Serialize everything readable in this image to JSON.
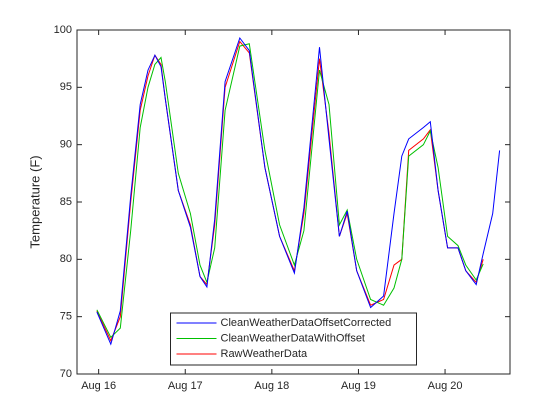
{
  "chart_data": {
    "type": "line",
    "ylabel": "Temperature (F)",
    "x": [
      15.98,
      16.14,
      16.25,
      16.37,
      16.48,
      16.57,
      16.65,
      16.72,
      16.77,
      16.92,
      17.06,
      17.17,
      17.25,
      17.34,
      17.46,
      17.63,
      17.74,
      17.92,
      18.09,
      18.26,
      18.37,
      18.55,
      18.66,
      18.78,
      18.87,
      18.98,
      19.14,
      19.29,
      19.41,
      19.5,
      19.58,
      19.75,
      19.83,
      19.92,
      20.03,
      20.15,
      20.24,
      20.36,
      20.44,
      20.55,
      20.63
    ],
    "series": [
      {
        "name": "CleanWeatherDataOffsetCorrected",
        "color": "#0000ff",
        "values": [
          75.4,
          72.6,
          75.5,
          85.5,
          93.5,
          96.5,
          97.8,
          96.8,
          94,
          86,
          82.8,
          78.5,
          77.6,
          83.5,
          95.5,
          99.3,
          98.2,
          88,
          82,
          78.8,
          84.5,
          98.5,
          90.5,
          82,
          84.2,
          79,
          75.8,
          76.8,
          84,
          89,
          90.5,
          91.5,
          92,
          86,
          81,
          81,
          79,
          77.8,
          80.5,
          84,
          89.5
        ]
      },
      {
        "name": "CleanWeatherDataWithOffset",
        "color": "#00c000",
        "values": [
          75.6,
          73.2,
          74,
          82.5,
          91.5,
          95,
          97,
          97.6,
          95.5,
          87.5,
          84,
          79.5,
          78,
          81,
          93,
          98.6,
          98.8,
          89.5,
          83,
          79.5,
          82.5,
          96.5,
          93.5,
          83,
          84.3,
          80,
          76.5,
          76,
          77.5,
          80,
          89,
          90,
          91.2,
          88,
          82,
          81.2,
          79.5,
          78.2,
          79.6,
          null,
          null
        ]
      },
      {
        "name": "RawWeatherData",
        "color": "#ff0000",
        "values": [
          75.5,
          72.9,
          75,
          85,
          93,
          96,
          97.8,
          97,
          94,
          86,
          83,
          78.5,
          77.8,
          83,
          95,
          99,
          98,
          88,
          82,
          79,
          84,
          97.5,
          91,
          82,
          84,
          79,
          76,
          76.5,
          79.5,
          80,
          89.5,
          90.5,
          91.3,
          86,
          81,
          81,
          79,
          78,
          80,
          null,
          null
        ]
      }
    ],
    "xlim": [
      15.75,
      20.75
    ],
    "xticks": [
      {
        "value": 16,
        "label": "Aug 16"
      },
      {
        "value": 17,
        "label": "Aug 17"
      },
      {
        "value": 18,
        "label": "Aug 18"
      },
      {
        "value": 19,
        "label": "Aug 19"
      },
      {
        "value": 20,
        "label": "Aug 20"
      }
    ],
    "ylim": [
      70,
      100
    ],
    "yticks": [
      70,
      75,
      80,
      85,
      90,
      95,
      100
    ],
    "legend": "south"
  }
}
